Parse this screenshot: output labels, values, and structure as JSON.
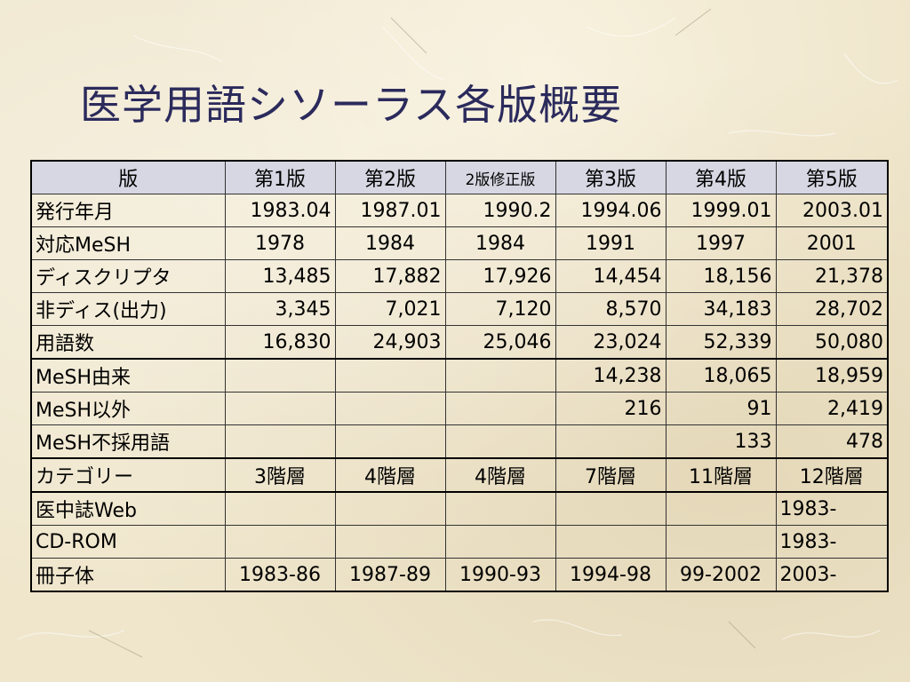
{
  "title": "医学用語シソーラス各版概要",
  "table": {
    "headers": [
      "版",
      "第1版",
      "第2版",
      "2版修正版",
      "第3版",
      "第4版",
      "第5版"
    ],
    "rows": [
      {
        "label": "発行年月",
        "cells": [
          "1983.04",
          "1987.01",
          "1990.2",
          "1994.06",
          "1999.01",
          "2003.01"
        ]
      },
      {
        "label": "対応MeSH",
        "cells": [
          "1978",
          "1984",
          "1984",
          "1991",
          "1997",
          "2001"
        ]
      },
      {
        "label": "ディスクリプタ",
        "cells": [
          "13,485",
          "17,882",
          "17,926",
          "14,454",
          "18,156",
          "21,378"
        ]
      },
      {
        "label": "非ディス(出力)",
        "cells": [
          "3,345",
          "7,021",
          "7,120",
          "8,570",
          "34,183",
          "28,702"
        ]
      },
      {
        "label": "用語数",
        "cells": [
          "16,830",
          "24,903",
          "25,046",
          "23,024",
          "52,339",
          "50,080"
        ]
      },
      {
        "label": "MeSH由来",
        "cells": [
          "",
          "",
          "",
          "14,238",
          "18,065",
          "18,959"
        ]
      },
      {
        "label": "MeSH以外",
        "cells": [
          "",
          "",
          "",
          "216",
          "91",
          "2,419"
        ]
      },
      {
        "label": "MeSH不採用語",
        "cells": [
          "",
          "",
          "",
          "",
          "133",
          "478"
        ]
      },
      {
        "label": "カテゴリー",
        "cells": [
          "3階層",
          "4階層",
          "4階層",
          "7階層",
          "11階層",
          "12階層"
        ]
      },
      {
        "label": "医中誌Web",
        "cells": [
          "",
          "",
          "",
          "",
          "",
          "1983-"
        ]
      },
      {
        "label": "CD-ROM",
        "cells": [
          "",
          "",
          "",
          "",
          "",
          "1983-"
        ]
      },
      {
        "label": "冊子体",
        "cells": [
          "1983-86",
          "1987-89",
          "1990-93",
          "1994-98",
          "99-2002",
          "2003-"
        ]
      }
    ]
  }
}
